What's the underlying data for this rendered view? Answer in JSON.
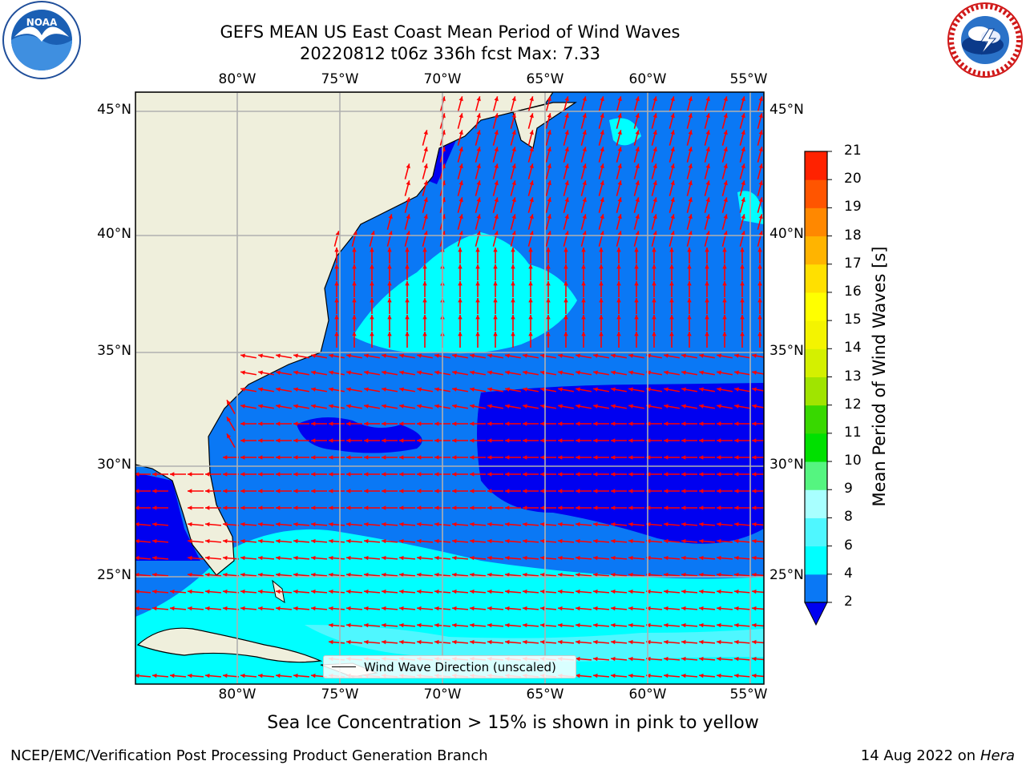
{
  "title": {
    "line1": "GEFS MEAN US East Coast Mean Period of Wind Waves",
    "line2": "20220812 t06z 336h fcst   Max: 7.33"
  },
  "map": {
    "lon_labels": [
      "80°W",
      "75°W",
      "70°W",
      "65°W",
      "60°W",
      "55°W"
    ],
    "lat_labels": [
      "45°N",
      "40°N",
      "35°N",
      "30°N",
      "25°N"
    ],
    "land_color": "#efefdc",
    "grid_color": "#b0b0b0",
    "arrow_color": "#ff0000",
    "fill_colors": {
      "below_2": "#0000f0",
      "2_4": "#0a78f5",
      "4_6": "#00ffff",
      "6_8": "#4ff7ff",
      "8_9": "#a8ffff"
    }
  },
  "legend": {
    "label": "Wind Wave Direction (unscaled)"
  },
  "colorbar": {
    "label": "Mean Period of Wind Waves [s]",
    "ticks": [
      "2",
      "4",
      "6",
      "8",
      "9",
      "10",
      "11",
      "12",
      "13",
      "14",
      "15",
      "16",
      "17",
      "18",
      "19",
      "20",
      "21"
    ],
    "colors": [
      "#0a78f5",
      "#00ffff",
      "#4ff7ff",
      "#a8ffff",
      "#55f580",
      "#00e000",
      "#38d800",
      "#a0e400",
      "#d4f000",
      "#f4f400",
      "#ffff00",
      "#ffe000",
      "#ffb400",
      "#ff8800",
      "#ff5500",
      "#ff2200"
    ],
    "under_color": "#0000f0"
  },
  "subtitle": "Sea Ice Concentration > 15% is shown in pink to yellow",
  "footer": {
    "left": "NCEP/EMC/Verification Post Processing Product Generation Branch",
    "right_date": "14 Aug 2022 on",
    "right_machine": "Hera"
  }
}
